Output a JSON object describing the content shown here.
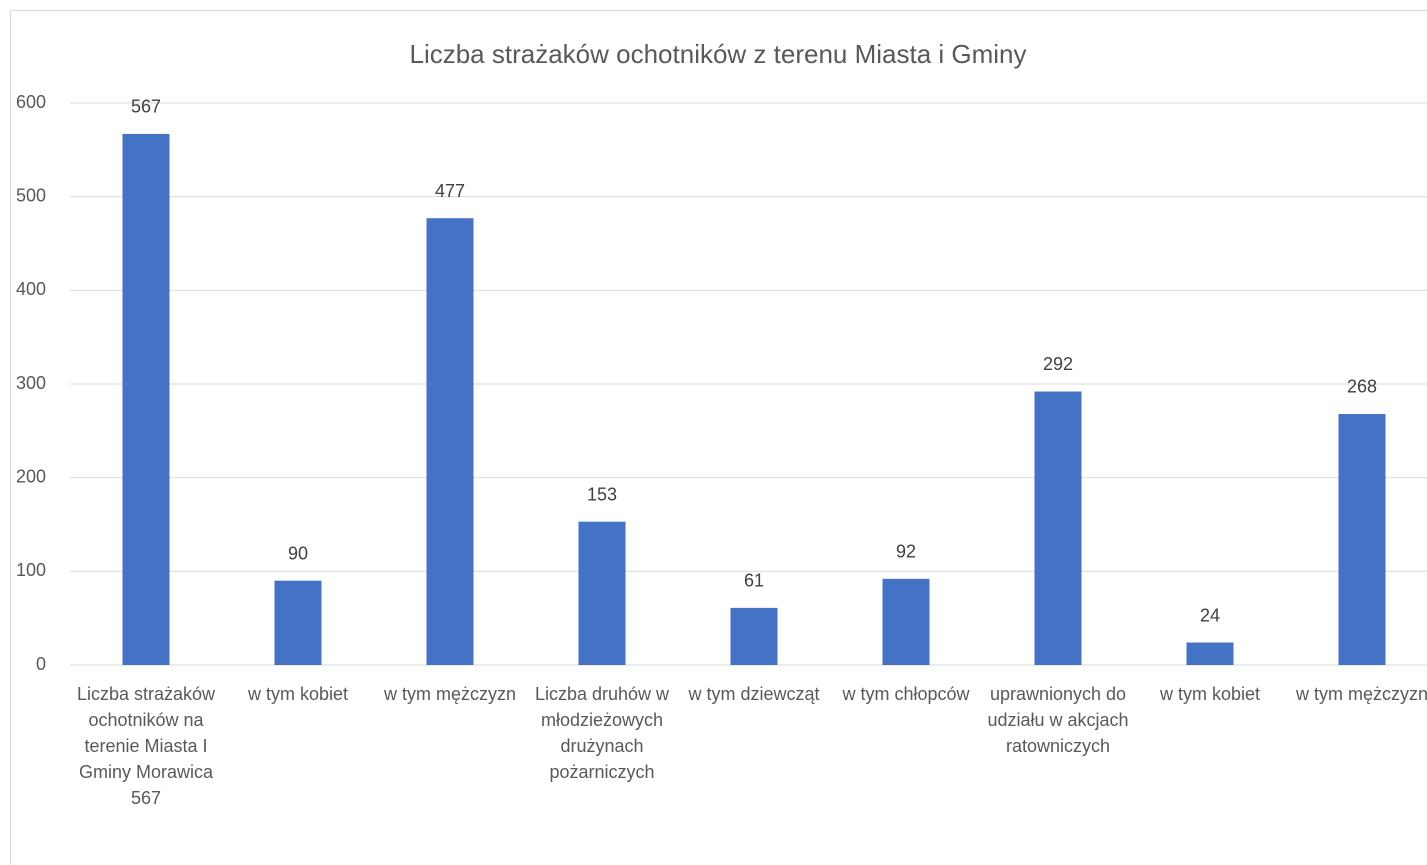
{
  "chart_data": {
    "type": "bar",
    "title": "Liczba strażaków ochotników z terenu Miasta i Gminy",
    "categories": [
      "Liczba strażaków ochotników na terenie Miasta I Gminy Morawica 567",
      "w tym kobiet",
      "w tym mężczyzn",
      "Liczba druhów w młodzieżowych drużynach pożarniczych",
      "w tym dziewcząt",
      "w tym chłopców",
      "uprawnionych do udziału w akcjach ratowniczych",
      "w tym kobiet",
      "w tym mężczyzn"
    ],
    "values": [
      567,
      90,
      477,
      153,
      61,
      92,
      292,
      24,
      268
    ],
    "color": "#4472c4",
    "ylim": [
      0,
      600
    ],
    "yticks": [
      0,
      100,
      200,
      300,
      400,
      500,
      600
    ],
    "grid": true
  }
}
